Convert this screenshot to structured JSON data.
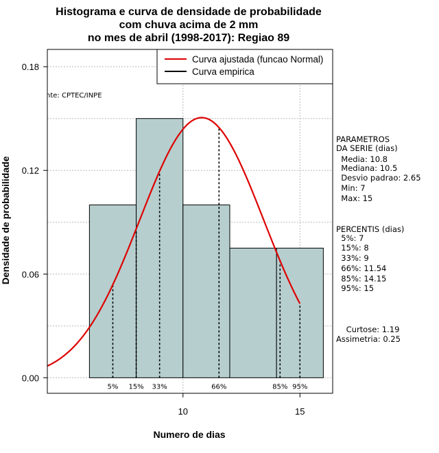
{
  "chart_data": {
    "type": "bar",
    "title_lines": [
      "Histograma e curva de densidade de probabilidade",
      "com chuva acima de 2 mm",
      "no mes de abril (1998-2017): Regiao 89"
    ],
    "xlabel": "Numero de dias",
    "ylabel": "Densidade de probabilidade",
    "xlim": [
      4.2,
      16.4
    ],
    "ylim": [
      -0.009,
      0.19
    ],
    "x_ticks": [
      10,
      15
    ],
    "y_ticks": [
      0.0,
      0.06,
      0.12,
      0.18
    ],
    "y_tick_labels": [
      "0.00",
      "0.06",
      "0.12",
      "0.18"
    ],
    "grid": true,
    "bars": [
      {
        "x0": 6,
        "x1": 8,
        "density": 0.1
      },
      {
        "x0": 8,
        "x1": 10,
        "density": 0.15
      },
      {
        "x0": 10,
        "x1": 12,
        "density": 0.1
      },
      {
        "x0": 12,
        "x1": 14,
        "density": 0.075
      },
      {
        "x0": 14,
        "x1": 16,
        "density": 0.075
      }
    ],
    "normal_fit": {
      "mean": 10.8,
      "sd": 2.65,
      "x_from": 4.2,
      "x_to": 15
    },
    "percentile_markers": [
      {
        "label": "5%",
        "x": 7
      },
      {
        "label": "15%",
        "x": 8
      },
      {
        "label": "33%",
        "x": 9
      },
      {
        "label": "66%",
        "x": 11.54
      },
      {
        "label": "85%",
        "x": 14.15
      },
      {
        "label": "95%",
        "x": 15
      }
    ],
    "legend": {
      "position": "top-right",
      "entries": [
        {
          "label": "Curva ajustada (funcao Normal)",
          "color": "#dd0000"
        },
        {
          "label": "Curva empirica",
          "color": "#000000"
        }
      ]
    },
    "source_note": "Fonte: CPTEC/INPE",
    "source_note_visible": "nte: CPTEC/INPE",
    "colors": {
      "bar_fill": "#b6cece",
      "curve": "#dd0000"
    }
  },
  "side_panel": {
    "parametros_lines": [
      "PARAMETROS",
      "DA SERIE (dias)",
      "  Media: 10.8",
      "  Mediana: 10.5",
      "  Desvio padrao: 2.65",
      "  Min: 7",
      "  Max: 15"
    ],
    "percentis_lines": [
      "PERCENTIS (dias)",
      "  5%: 7",
      "  15%: 8",
      "  33%: 9",
      "  66%: 11.54",
      "  85%: 14.15",
      "  95%: 15"
    ],
    "stats_lines": [
      "    Curtose: 1.19",
      "Assimetria: 0.25"
    ]
  }
}
